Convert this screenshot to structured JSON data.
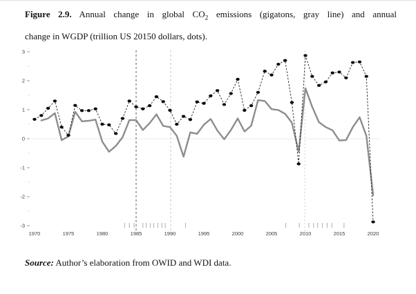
{
  "figure": {
    "label": "Figure 2.9.",
    "caption_a": " Annual change in global CO",
    "co2_sub": "2",
    "caption_b": " emissions (gigatons, gray line) and annual",
    "caption_line2": "change in WGDP (trillion US 20150 dollars, dots)."
  },
  "source": {
    "label": "Source:",
    "text": " Author’s elaboration from OWID and WDI data."
  },
  "chart_data": {
    "type": "line",
    "title": "",
    "xlabel": "",
    "ylabel": "",
    "ylim": [
      -3,
      3
    ],
    "xlim": [
      1969.5,
      2021
    ],
    "grid": "zero-line-only",
    "legend": "none",
    "y_ticks": [
      3,
      2,
      1,
      0,
      -1,
      -2,
      -3
    ],
    "x_ticks": [
      1970,
      1975,
      1980,
      1985,
      1990,
      1995,
      2000,
      2005,
      2010,
      2015,
      2020
    ],
    "x": [
      1970,
      1971,
      1972,
      1973,
      1974,
      1975,
      1976,
      1977,
      1978,
      1979,
      1980,
      1981,
      1982,
      1983,
      1984,
      1985,
      1986,
      1987,
      1988,
      1989,
      1990,
      1991,
      1992,
      1993,
      1994,
      1995,
      1996,
      1997,
      1998,
      1999,
      2000,
      2001,
      2002,
      2003,
      2004,
      2005,
      2006,
      2007,
      2008,
      2009,
      2010,
      2011,
      2012,
      2013,
      2014,
      2015,
      2016,
      2017,
      2018,
      2019,
      2020
    ],
    "series": [
      {
        "name": "Annual change in global CO2 emissions (gigatons)",
        "style": "solid gray line",
        "color": "#8c8c8c",
        "values": [
          null,
          0.63,
          0.7,
          0.88,
          -0.05,
          0.08,
          0.93,
          0.6,
          0.62,
          0.66,
          -0.1,
          -0.45,
          -0.25,
          0.05,
          0.64,
          0.64,
          0.3,
          0.54,
          0.84,
          0.44,
          0.4,
          0.1,
          -0.62,
          0.22,
          0.17,
          0.48,
          0.68,
          0.28,
          -0.02,
          0.3,
          0.7,
          0.25,
          0.45,
          1.33,
          1.3,
          1.02,
          0.99,
          0.86,
          0.55,
          -0.45,
          1.74,
          1.1,
          0.57,
          0.4,
          0.29,
          -0.06,
          -0.05,
          0.4,
          0.74,
          0.1,
          -1.95
        ]
      },
      {
        "name": "Annual change in WGDP (trillion US 20150 dollars)",
        "style": "black dots with dashed connector",
        "color": "#0c0c0c",
        "values": [
          0.67,
          0.8,
          1.05,
          1.3,
          0.4,
          0.12,
          1.15,
          0.97,
          0.97,
          1.03,
          0.5,
          0.48,
          0.18,
          0.7,
          1.3,
          1.1,
          1.03,
          1.14,
          1.45,
          1.28,
          0.98,
          0.5,
          0.77,
          0.66,
          1.27,
          1.22,
          1.48,
          1.66,
          1.18,
          1.56,
          2.05,
          0.98,
          1.14,
          1.6,
          2.33,
          2.2,
          2.57,
          2.7,
          1.25,
          -0.87,
          2.87,
          2.15,
          1.84,
          1.96,
          2.27,
          2.3,
          2.1,
          2.63,
          2.65,
          2.15,
          -2.87
        ]
      }
    ],
    "vlines": [
      {
        "year": 1985,
        "color": "#5a5a5a",
        "dash": "3,3"
      },
      {
        "year": 1990.1,
        "color": "#c3c3c3",
        "dash": "3,3"
      },
      {
        "year": 2009.9,
        "color": "#cfcfcf",
        "dash": "2,3"
      }
    ],
    "rug_tick_years": [
      1983.3,
      1984.0,
      1984.7,
      1986.0,
      1986.5,
      1987.1,
      1987.6,
      1988.2,
      1988.8,
      1989.3,
      1992.3,
      2007.1,
      2009.1,
      2010.5,
      2011.2,
      2011.8,
      2012.5,
      2013.2,
      2013.9,
      2015.7
    ],
    "colors": {
      "zero_gridline": "#ebebeb",
      "axis_text": "#3a3a3a",
      "tick_mark": "#9a9a9a",
      "minor_tick_mark": "#dedede",
      "rug_tick": "#ababab",
      "dot_connector": "#1c1c1c"
    }
  }
}
